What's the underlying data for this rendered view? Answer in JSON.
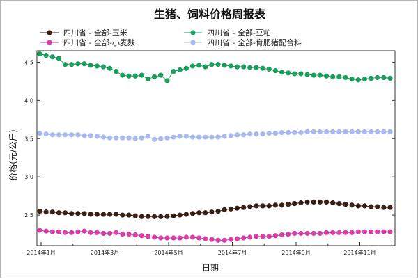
{
  "chart_data": {
    "type": "line",
    "title": "生猪、饲料价格周报表",
    "xlabel": "日期",
    "ylabel": "价格(元/公斤)",
    "ylim": [
      2.1,
      4.65
    ],
    "yticks": [
      2.5,
      3.0,
      3.5,
      4.0,
      4.5
    ],
    "ytick_labels": [
      "2.5",
      "3.0",
      "3.5",
      "4.0",
      "4.5"
    ],
    "xticks": [
      "2014年1月",
      "2014年3月",
      "2014年5月",
      "2014年7月",
      "2014年9月",
      "2014年11月"
    ],
    "legend_position": "top",
    "series": [
      {
        "name": "四川省 - 全部-玉米",
        "color": "#3a1f14",
        "values": [
          2.55,
          2.54,
          2.54,
          2.53,
          2.53,
          2.52,
          2.52,
          2.52,
          2.51,
          2.51,
          2.51,
          2.51,
          2.51,
          2.5,
          2.5,
          2.49,
          2.48,
          2.48,
          2.48,
          2.48,
          2.48,
          2.49,
          2.5,
          2.51,
          2.52,
          2.53,
          2.53,
          2.54,
          2.55,
          2.57,
          2.58,
          2.59,
          2.6,
          2.61,
          2.62,
          2.62,
          2.62,
          2.63,
          2.63,
          2.64,
          2.65,
          2.66,
          2.67,
          2.67,
          2.67,
          2.67,
          2.66,
          2.65,
          2.64,
          2.63,
          2.62,
          2.62,
          2.61,
          2.61,
          2.6,
          2.6
        ]
      },
      {
        "name": "四川省 - 全部-小麦麸",
        "color": "#d63fa8",
        "values": [
          2.3,
          2.29,
          2.28,
          2.28,
          2.27,
          2.27,
          2.28,
          2.29,
          2.27,
          2.27,
          2.26,
          2.26,
          2.27,
          2.25,
          2.25,
          2.24,
          2.23,
          2.22,
          2.21,
          2.2,
          2.2,
          2.2,
          2.2,
          2.21,
          2.21,
          2.2,
          2.19,
          2.18,
          2.17,
          2.17,
          2.18,
          2.19,
          2.2,
          2.21,
          2.22,
          2.22,
          2.22,
          2.23,
          2.24,
          2.25,
          2.26,
          2.26,
          2.26,
          2.26,
          2.26,
          2.27,
          2.27,
          2.27,
          2.27,
          2.27,
          2.28,
          2.28,
          2.28,
          2.28,
          2.28,
          2.28
        ]
      },
      {
        "name": "四川省 - 全部-豆粕",
        "color": "#1a9e5c",
        "values": [
          4.61,
          4.59,
          4.57,
          4.55,
          4.47,
          4.47,
          4.48,
          4.48,
          4.46,
          4.45,
          4.44,
          4.42,
          4.38,
          4.33,
          4.32,
          4.32,
          4.33,
          4.28,
          4.31,
          4.33,
          4.26,
          4.38,
          4.4,
          4.42,
          4.45,
          4.46,
          4.44,
          4.47,
          4.47,
          4.46,
          4.45,
          4.44,
          4.44,
          4.43,
          4.43,
          4.42,
          4.41,
          4.39,
          4.37,
          4.36,
          4.35,
          4.35,
          4.34,
          4.33,
          4.33,
          4.32,
          4.31,
          4.31,
          4.3,
          4.28,
          4.27,
          4.28,
          4.29,
          4.3,
          4.3,
          4.29
        ]
      },
      {
        "name": "四川省 - 全部-育肥猪配合料",
        "color": "#a7b9ee",
        "values": [
          3.57,
          3.56,
          3.55,
          3.55,
          3.55,
          3.55,
          3.55,
          3.54,
          3.54,
          3.53,
          3.52,
          3.51,
          3.51,
          3.51,
          3.51,
          3.5,
          3.51,
          3.53,
          3.49,
          3.5,
          3.51,
          3.52,
          3.53,
          3.53,
          3.52,
          3.52,
          3.52,
          3.52,
          3.52,
          3.53,
          3.54,
          3.55,
          3.55,
          3.56,
          3.56,
          3.56,
          3.57,
          3.57,
          3.58,
          3.58,
          3.58,
          3.58,
          3.59,
          3.59,
          3.59,
          3.59,
          3.59,
          3.59,
          3.59,
          3.59,
          3.59,
          3.59,
          3.59,
          3.59,
          3.59,
          3.59
        ]
      }
    ]
  }
}
